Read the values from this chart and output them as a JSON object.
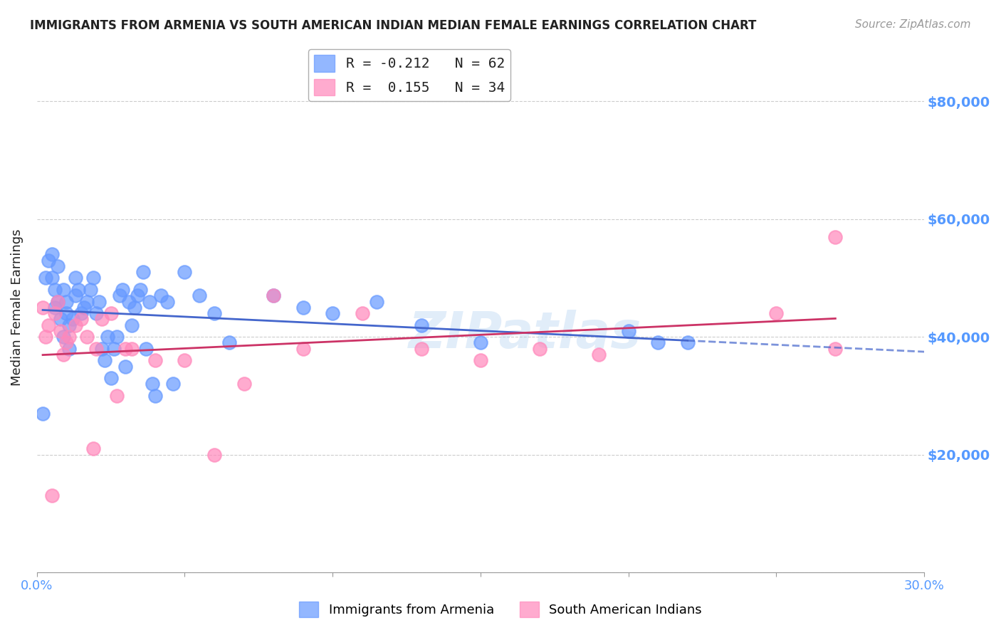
{
  "title": "IMMIGRANTS FROM ARMENIA VS SOUTH AMERICAN INDIAN MEDIAN FEMALE EARNINGS CORRELATION CHART",
  "source": "Source: ZipAtlas.com",
  "xlabel": "",
  "ylabel": "Median Female Earnings",
  "xlim": [
    0.0,
    0.3
  ],
  "ylim": [
    0,
    90000
  ],
  "yticks": [
    0,
    20000,
    40000,
    60000,
    80000
  ],
  "ytick_labels": [
    "",
    "$20,000",
    "$40,000",
    "$60,000",
    "$80,000"
  ],
  "xticks": [
    0.0,
    0.05,
    0.1,
    0.15,
    0.2,
    0.25,
    0.3
  ],
  "xtick_labels": [
    "0.0%",
    "",
    "",
    "",
    "",
    "",
    "30.0%"
  ],
  "legend_entries": [
    {
      "label": "R = -0.212   N = 62",
      "color": "#6699ff"
    },
    {
      "label": "R =  0.155   N = 34",
      "color": "#ff6699"
    }
  ],
  "armenia_color": "#6699ff",
  "sai_color": "#ff88bb",
  "trendline_armenia_color": "#4466cc",
  "trendline_sai_color": "#cc3366",
  "watermark": "ZIPatlas",
  "title_color": "#222222",
  "axis_label_color": "#222222",
  "tick_color": "#5599ff",
  "grid_color": "#cccccc",
  "background_color": "#ffffff",
  "armenia_x": [
    0.002,
    0.003,
    0.004,
    0.005,
    0.005,
    0.006,
    0.006,
    0.007,
    0.007,
    0.008,
    0.009,
    0.009,
    0.01,
    0.01,
    0.011,
    0.011,
    0.012,
    0.013,
    0.013,
    0.014,
    0.015,
    0.016,
    0.017,
    0.018,
    0.019,
    0.02,
    0.021,
    0.022,
    0.023,
    0.024,
    0.025,
    0.026,
    0.027,
    0.028,
    0.029,
    0.03,
    0.031,
    0.032,
    0.033,
    0.034,
    0.035,
    0.036,
    0.037,
    0.038,
    0.039,
    0.04,
    0.042,
    0.044,
    0.046,
    0.05,
    0.055,
    0.06,
    0.065,
    0.08,
    0.09,
    0.1,
    0.115,
    0.13,
    0.15,
    0.2,
    0.21,
    0.22
  ],
  "armenia_y": [
    27000,
    50000,
    53000,
    54000,
    50000,
    48000,
    45000,
    52000,
    46000,
    43000,
    48000,
    40000,
    44000,
    46000,
    42000,
    38000,
    43000,
    50000,
    47000,
    48000,
    44000,
    45000,
    46000,
    48000,
    50000,
    44000,
    46000,
    38000,
    36000,
    40000,
    33000,
    38000,
    40000,
    47000,
    48000,
    35000,
    46000,
    42000,
    45000,
    47000,
    48000,
    51000,
    38000,
    46000,
    32000,
    30000,
    47000,
    46000,
    32000,
    51000,
    47000,
    44000,
    39000,
    47000,
    45000,
    44000,
    46000,
    42000,
    39000,
    41000,
    39000,
    39000
  ],
  "sai_x": [
    0.002,
    0.003,
    0.004,
    0.005,
    0.006,
    0.007,
    0.008,
    0.009,
    0.01,
    0.011,
    0.013,
    0.015,
    0.017,
    0.019,
    0.02,
    0.022,
    0.025,
    0.027,
    0.03,
    0.032,
    0.04,
    0.05,
    0.06,
    0.07,
    0.08,
    0.09,
    0.11,
    0.13,
    0.15,
    0.17,
    0.19,
    0.25,
    0.27,
    0.27
  ],
  "sai_y": [
    45000,
    40000,
    42000,
    13000,
    44000,
    46000,
    41000,
    37000,
    39000,
    40000,
    42000,
    43000,
    40000,
    21000,
    38000,
    43000,
    44000,
    30000,
    38000,
    38000,
    36000,
    36000,
    20000,
    32000,
    47000,
    38000,
    44000,
    38000,
    36000,
    38000,
    37000,
    44000,
    57000,
    38000
  ]
}
